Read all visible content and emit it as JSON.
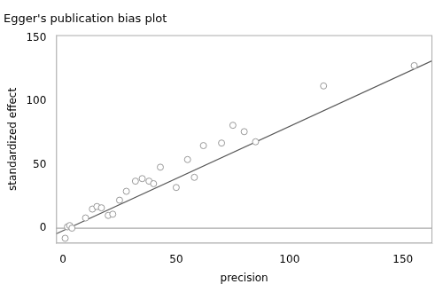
{
  "chart_data": {
    "type": "scatter",
    "title": "Egger's publication bias plot",
    "xlabel": "precision",
    "ylabel": "standardized effect",
    "series": [
      {
        "type": "scatter",
        "marker": "open circle",
        "color": "#999999",
        "x": [
          1,
          2,
          3,
          4,
          10,
          13,
          15,
          17,
          20,
          22,
          25,
          28,
          32,
          35,
          38,
          40,
          43,
          50,
          55,
          58,
          62,
          70,
          75,
          80,
          85,
          115,
          155
        ],
        "values": [
          -8,
          1,
          2,
          0,
          8,
          15,
          17,
          16,
          10,
          11,
          22,
          29,
          37,
          39,
          37,
          35,
          48,
          32,
          54,
          40,
          65,
          67,
          81,
          76,
          68,
          112,
          128
        ]
      },
      {
        "type": "line",
        "line_style": "solid",
        "color": "#555555",
        "x": [
          -3,
          163
        ],
        "values": [
          -4.466,
          131.986
        ]
      },
      {
        "type": "line",
        "line_style": "solid",
        "color": "#aaaaaa",
        "x": [
          -3,
          163
        ],
        "values": [
          0,
          0
        ]
      }
    ],
    "xlim": [
      -3,
      163
    ],
    "ylim": [
      -12,
      152
    ],
    "xticks": [
      0,
      50,
      100,
      150
    ],
    "yticks": [
      0,
      50,
      100,
      150
    ],
    "grid": false
  }
}
